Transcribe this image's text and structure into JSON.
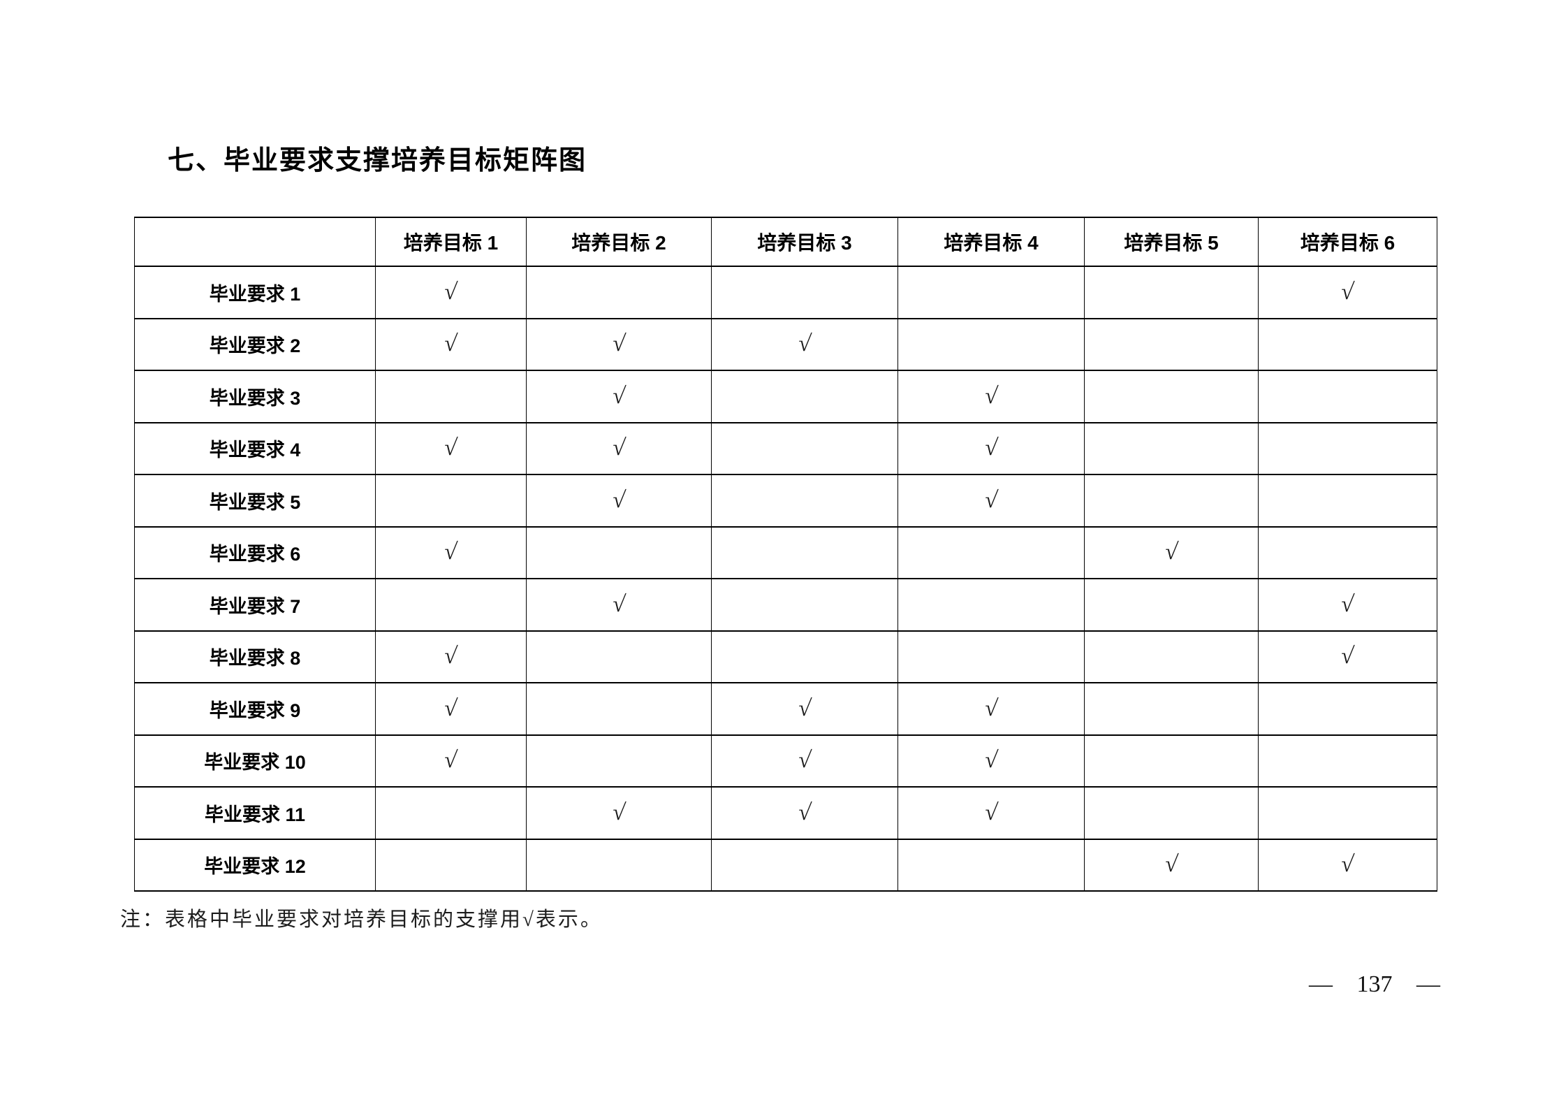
{
  "page": {
    "title": "七、毕业要求支撑培养目标矩阵图",
    "note": "注：表格中毕业要求对培养目标的支撑用√表示。",
    "page_number": "— 137 —"
  },
  "table": {
    "corner_label": "",
    "check_symbol": "√",
    "columns": [
      "培养目标 1",
      "培养目标 2",
      "培养目标 3",
      "培养目标 4",
      "培养目标 5",
      "培养目标 6"
    ],
    "rows": [
      {
        "label": "毕业要求 1",
        "checks": [
          1,
          0,
          0,
          0,
          0,
          1
        ]
      },
      {
        "label": "毕业要求 2",
        "checks": [
          1,
          1,
          1,
          0,
          0,
          0
        ]
      },
      {
        "label": "毕业要求 3",
        "checks": [
          0,
          1,
          0,
          1,
          0,
          0
        ]
      },
      {
        "label": "毕业要求 4",
        "checks": [
          1,
          1,
          0,
          1,
          0,
          0
        ]
      },
      {
        "label": "毕业要求 5",
        "checks": [
          0,
          1,
          0,
          1,
          0,
          0
        ]
      },
      {
        "label": "毕业要求 6",
        "checks": [
          1,
          0,
          0,
          0,
          1,
          0
        ]
      },
      {
        "label": "毕业要求 7",
        "checks": [
          0,
          1,
          0,
          0,
          0,
          1
        ]
      },
      {
        "label": "毕业要求 8",
        "checks": [
          1,
          0,
          0,
          0,
          0,
          1
        ]
      },
      {
        "label": "毕业要求 9",
        "checks": [
          1,
          0,
          1,
          1,
          0,
          0
        ]
      },
      {
        "label": "毕业要求 10",
        "checks": [
          1,
          0,
          1,
          1,
          0,
          0
        ]
      },
      {
        "label": "毕业要求 11",
        "checks": [
          0,
          1,
          1,
          1,
          0,
          0
        ]
      },
      {
        "label": "毕业要求 12",
        "checks": [
          0,
          0,
          0,
          0,
          1,
          1
        ]
      }
    ]
  }
}
